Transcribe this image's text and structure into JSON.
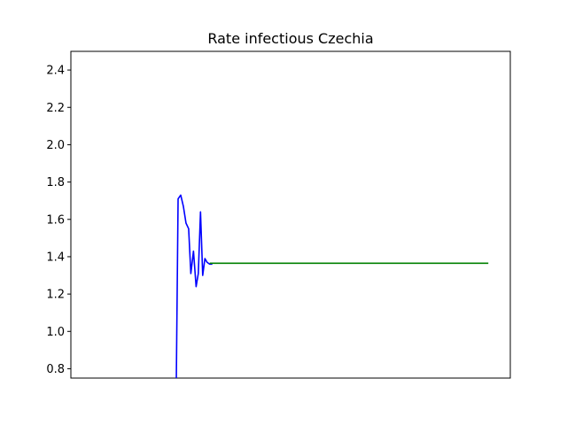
{
  "chart_data": {
    "type": "line",
    "title": "Rate infectious Czechia",
    "xlabel": "",
    "ylabel": "",
    "xlim": [
      0,
      100
    ],
    "ylim": [
      0.75,
      2.5
    ],
    "yticks": [
      0.8,
      1.0,
      1.2,
      1.4,
      1.6,
      1.8,
      2.0,
      2.2,
      2.4
    ],
    "ytick_labels": [
      "0.8",
      "1.0",
      "1.2",
      "1.4",
      "1.6",
      "1.8",
      "2.0",
      "2.2",
      "2.4"
    ],
    "xticks_visible": false,
    "grid": false,
    "series": [
      {
        "color": "#0000ff",
        "x": [
          24.0,
          24.4,
          25.0,
          25.6,
          26.2,
          26.8,
          27.3,
          27.9,
          28.5,
          29.0,
          29.5,
          30.0,
          30.5,
          31.0,
          31.6,
          32.2
        ],
        "y": [
          0.75,
          1.71,
          1.73,
          1.67,
          1.58,
          1.55,
          1.31,
          1.43,
          1.24,
          1.31,
          1.64,
          1.3,
          1.39,
          1.37,
          1.36,
          1.36
        ]
      },
      {
        "color": "#008000",
        "x": [
          31.6,
          95.0
        ],
        "y": [
          1.365,
          1.365
        ]
      }
    ]
  }
}
